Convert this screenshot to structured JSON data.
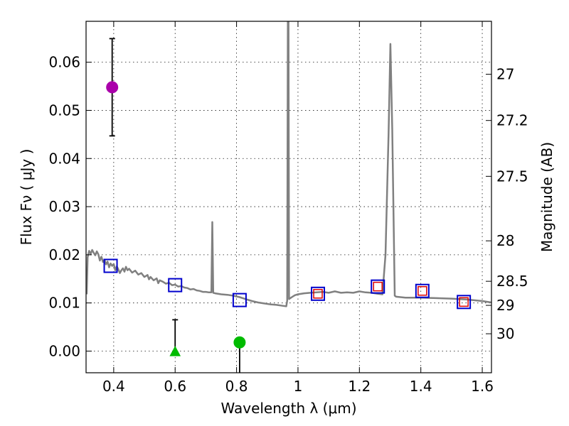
{
  "chart_data": {
    "type": "line",
    "xlabel": "Wavelength  λ (μm)",
    "ylabel": "Flux  Fν  ( μJy )",
    "ylabel_right": "Magnitude (AB)",
    "xlim": [
      0.31,
      1.63
    ],
    "ylim": [
      -0.0045,
      0.0685
    ],
    "grid": true,
    "x_ticks": [
      0.4,
      0.6,
      0.8,
      1.0,
      1.2,
      1.4,
      1.6
    ],
    "x_tick_labels": [
      "0.4",
      "0.6",
      "0.8",
      "1",
      "1.2",
      "1.4",
      "1.6"
    ],
    "y_ticks": [
      0.0,
      0.01,
      0.02,
      0.03,
      0.04,
      0.05,
      0.06
    ],
    "y_tick_labels": [
      "0.00",
      "0.01",
      "0.02",
      "0.03",
      "0.04",
      "0.05",
      "0.06"
    ],
    "right_ticks": [
      {
        "label": "27",
        "flux": 0.0575
      },
      {
        "label": "27.2",
        "flux": 0.0479
      },
      {
        "label": "27.5",
        "flux": 0.0363
      },
      {
        "label": "28",
        "flux": 0.0229
      },
      {
        "label": "28.5",
        "flux": 0.0145
      },
      {
        "label": "29",
        "flux": 0.0095
      },
      {
        "label": "30",
        "flux": 0.0036
      }
    ],
    "colors": {
      "spectrum": "#808080",
      "model_marker": "#0000cc",
      "obs_marker": "#dd0000",
      "detection_uv": "#aa00aa",
      "detection_optical": "#00bb00",
      "upper_limit": "#00bb00",
      "errorbar": "#000000"
    },
    "series": [
      {
        "name": "Model SED spectrum",
        "kind": "line",
        "points": [
          [
            0.312,
            0.0118
          ],
          [
            0.315,
            0.0195
          ],
          [
            0.32,
            0.0208
          ],
          [
            0.325,
            0.0202
          ],
          [
            0.33,
            0.021
          ],
          [
            0.335,
            0.0204
          ],
          [
            0.34,
            0.0199
          ],
          [
            0.345,
            0.0207
          ],
          [
            0.35,
            0.0201
          ],
          [
            0.355,
            0.0188
          ],
          [
            0.36,
            0.0196
          ],
          [
            0.365,
            0.0185
          ],
          [
            0.37,
            0.019
          ],
          [
            0.375,
            0.018
          ],
          [
            0.38,
            0.0186
          ],
          [
            0.385,
            0.0174
          ],
          [
            0.39,
            0.0182
          ],
          [
            0.395,
            0.0177
          ],
          [
            0.4,
            0.0181
          ],
          [
            0.405,
            0.0168
          ],
          [
            0.41,
            0.0176
          ],
          [
            0.415,
            0.017
          ],
          [
            0.42,
            0.0162
          ],
          [
            0.425,
            0.0168
          ],
          [
            0.43,
            0.0172
          ],
          [
            0.435,
            0.0165
          ],
          [
            0.44,
            0.0175
          ],
          [
            0.445,
            0.0168
          ],
          [
            0.45,
            0.0171
          ],
          [
            0.46,
            0.0163
          ],
          [
            0.47,
            0.0167
          ],
          [
            0.48,
            0.0159
          ],
          [
            0.49,
            0.0162
          ],
          [
            0.5,
            0.0154
          ],
          [
            0.51,
            0.0158
          ],
          [
            0.515,
            0.0149
          ],
          [
            0.52,
            0.0154
          ],
          [
            0.53,
            0.0147
          ],
          [
            0.54,
            0.0151
          ],
          [
            0.545,
            0.0141
          ],
          [
            0.55,
            0.0147
          ],
          [
            0.56,
            0.0144
          ],
          [
            0.57,
            0.014
          ],
          [
            0.58,
            0.0142
          ],
          [
            0.59,
            0.0137
          ],
          [
            0.6,
            0.0138
          ],
          [
            0.61,
            0.0134
          ],
          [
            0.62,
            0.0135
          ],
          [
            0.63,
            0.0132
          ],
          [
            0.64,
            0.0131
          ],
          [
            0.65,
            0.0128
          ],
          [
            0.66,
            0.0129
          ],
          [
            0.67,
            0.0126
          ],
          [
            0.68,
            0.0125
          ],
          [
            0.69,
            0.0123
          ],
          [
            0.7,
            0.0123
          ],
          [
            0.71,
            0.0122
          ],
          [
            0.718,
            0.0122
          ],
          [
            0.721,
            0.0268
          ],
          [
            0.724,
            0.0121
          ],
          [
            0.73,
            0.012
          ],
          [
            0.75,
            0.0118
          ],
          [
            0.77,
            0.0117
          ],
          [
            0.79,
            0.0115
          ],
          [
            0.81,
            0.0112
          ],
          [
            0.83,
            0.0108
          ],
          [
            0.85,
            0.0104
          ],
          [
            0.87,
            0.0101
          ],
          [
            0.89,
            0.0099
          ],
          [
            0.91,
            0.0097
          ],
          [
            0.93,
            0.0096
          ],
          [
            0.95,
            0.0094
          ],
          [
            0.962,
            0.0093
          ],
          [
            0.965,
            0.0105
          ],
          [
            0.967,
            0.0685
          ],
          [
            0.969,
            0.0685
          ],
          [
            0.971,
            0.0108
          ],
          [
            0.975,
            0.011
          ],
          [
            0.98,
            0.0112
          ],
          [
            0.99,
            0.0116
          ],
          [
            1.0,
            0.0118
          ],
          [
            1.02,
            0.012
          ],
          [
            1.04,
            0.0121
          ],
          [
            1.06,
            0.0122
          ],
          [
            1.08,
            0.0123
          ],
          [
            1.1,
            0.0121
          ],
          [
            1.12,
            0.0124
          ],
          [
            1.14,
            0.0121
          ],
          [
            1.16,
            0.0122
          ],
          [
            1.18,
            0.0121
          ],
          [
            1.2,
            0.0124
          ],
          [
            1.22,
            0.0122
          ],
          [
            1.24,
            0.0121
          ],
          [
            1.26,
            0.0119
          ],
          [
            1.275,
            0.0118
          ],
          [
            1.285,
            0.02
          ],
          [
            1.295,
            0.045
          ],
          [
            1.301,
            0.0638
          ],
          [
            1.307,
            0.046
          ],
          [
            1.315,
            0.0115
          ],
          [
            1.32,
            0.0113
          ],
          [
            1.35,
            0.0111
          ],
          [
            1.4,
            0.0111
          ],
          [
            1.45,
            0.011
          ],
          [
            1.5,
            0.0109
          ],
          [
            1.55,
            0.0107
          ],
          [
            1.6,
            0.0104
          ],
          [
            1.63,
            0.0101
          ]
        ]
      },
      {
        "name": "Model band flux",
        "kind": "open-square",
        "points": [
          [
            0.39,
            0.0177
          ],
          [
            0.6,
            0.0137
          ],
          [
            0.81,
            0.0106
          ],
          [
            1.065,
            0.0119
          ],
          [
            1.26,
            0.0134
          ],
          [
            1.405,
            0.0125
          ],
          [
            1.54,
            0.0102
          ]
        ]
      },
      {
        "name": "Observed flux",
        "kind": "small-open-square",
        "points": [
          [
            1.065,
            0.0119
          ],
          [
            1.26,
            0.0134
          ],
          [
            1.405,
            0.0125
          ],
          [
            1.54,
            0.0102
          ]
        ]
      },
      {
        "name": "UV detection",
        "kind": "filled-circle",
        "points": [
          [
            0.395,
            0.0548
          ]
        ],
        "error": [
          [
            0.0447,
            0.0649
          ]
        ]
      },
      {
        "name": "Optical detection",
        "kind": "filled-circle",
        "points": [
          [
            0.81,
            0.0018
          ]
        ],
        "error": [
          [
            -0.0045,
            0.0018
          ]
        ]
      },
      {
        "name": "Upper limit",
        "kind": "triangle",
        "points": [
          [
            0.6,
            -0.0001
          ]
        ],
        "error": [
          [
            -0.0001,
            0.0065
          ]
        ]
      }
    ]
  }
}
